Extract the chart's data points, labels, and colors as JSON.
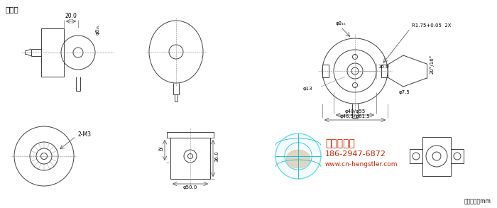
{
  "bg_color": "#ffffff",
  "line_color": "#404040",
  "text_color": "#000000",
  "watermark_color_cyan": "#00bcd4",
  "watermark_color_tan": "#c8a87a",
  "title_text": "盲孔轴",
  "dim_texts": {
    "d20": "20.0",
    "d815": "φ8₁₅",
    "r175": "R1.75+0.05  2X",
    "d815c": "φ8₁₅",
    "d13": "φ13",
    "d75": "φ7.5",
    "d4055": "φ40/φ55",
    "d4655": "φ46.5/φ61.5",
    "d160": "16.0",
    "angle": "20°/16°",
    "m3": "2-M3",
    "dim35": "35",
    "dim360": "36.0",
    "dim500": "φ50.0",
    "unit": "尺寸单位：mm"
  },
  "company_text": "西安德伏拓",
  "phone_text": "186-2947-6872",
  "web_text": "www.cn-hengstler.com"
}
